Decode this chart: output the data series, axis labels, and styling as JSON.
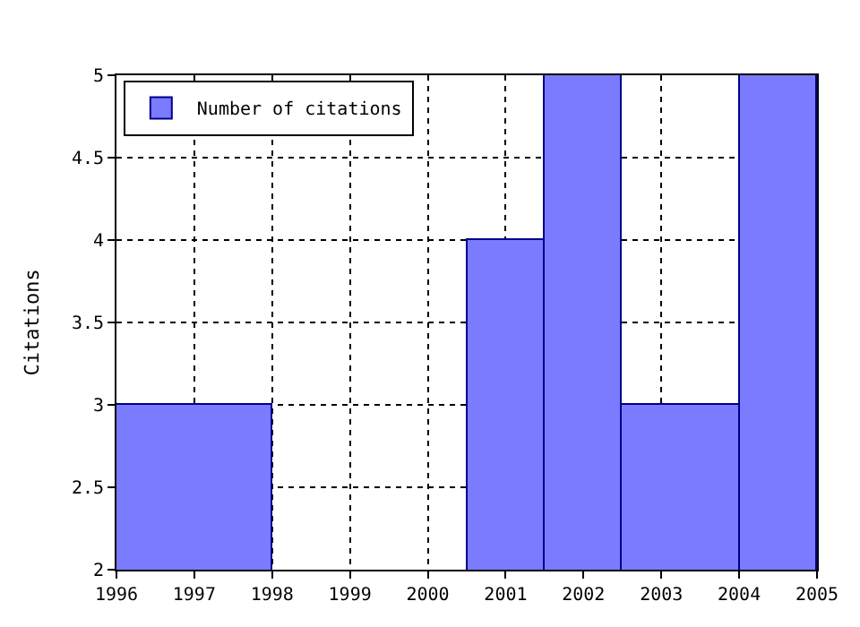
{
  "chart_data": {
    "type": "histogram",
    "ylabel": "Citations",
    "bins": [
      1996,
      1998,
      2000.5,
      2001.5,
      2002.5,
      2004,
      2005
    ],
    "series": [
      {
        "name": "Number of citations",
        "color": "#7b7bff",
        "values": [
          3,
          null,
          4,
          5,
          3,
          5
        ]
      }
    ],
    "xlim": [
      1996,
      2005
    ],
    "xticks": [
      1996,
      1997,
      1998,
      1999,
      2000,
      2001,
      2002,
      2003,
      2004,
      2005
    ],
    "ylim": [
      2,
      5
    ],
    "yticks": [
      2,
      2.5,
      3,
      3.5,
      4,
      4.5,
      5
    ],
    "grid": true,
    "legend": "top left"
  }
}
